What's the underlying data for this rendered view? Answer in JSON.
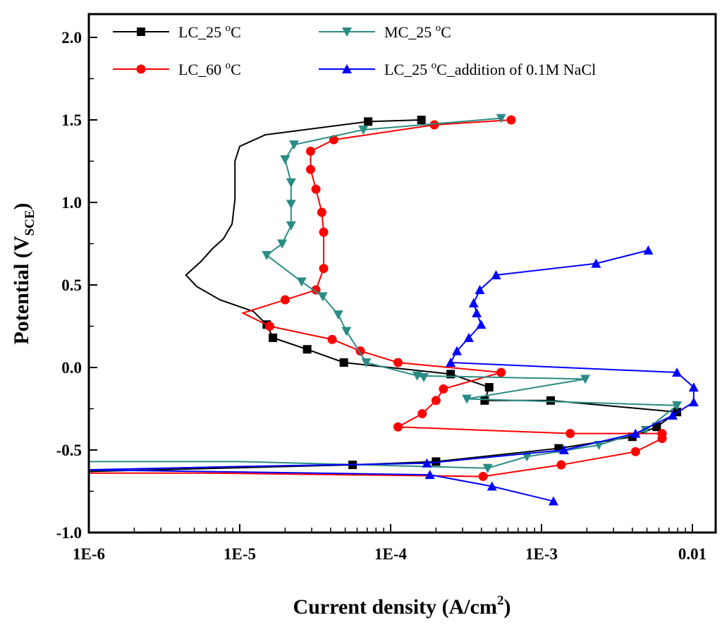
{
  "chart_data": {
    "type": "line",
    "title": "",
    "xlabel": {
      "pre": "Current density (A/cm",
      "sup": "2",
      "post": ")"
    },
    "ylabel": {
      "pre": "Potential (V",
      "sub": "SCE",
      "post": ")"
    },
    "xscale": "log",
    "xlim": [
      1e-06,
      0.015
    ],
    "ylim": [
      -1.0,
      2.0
    ],
    "xticks": [
      {
        "v": 1e-06,
        "label": "1E-6"
      },
      {
        "v": 1e-05,
        "label": "1E-5"
      },
      {
        "v": 0.0001,
        "label": "1E-4"
      },
      {
        "v": 0.001,
        "label": "1E-3"
      },
      {
        "v": 0.01,
        "label": "0.01"
      }
    ],
    "yticks": [
      {
        "v": -1.0,
        "label": "-1.0"
      },
      {
        "v": -0.5,
        "label": "-0.5"
      },
      {
        "v": 0.0,
        "label": "0.0"
      },
      {
        "v": 0.5,
        "label": "0.5"
      },
      {
        "v": 1.0,
        "label": "1.0"
      },
      {
        "v": 1.5,
        "label": "1.5"
      },
      {
        "v": 2.0,
        "label": "2.0"
      }
    ],
    "legend_placement": "top-left",
    "series": [
      {
        "name": {
          "pre": "LC_25 ",
          "sup": "o",
          "post": "C"
        },
        "color": "#000000",
        "marker": "square",
        "x": [
          1e-06,
          5.6e-05,
          0.0002,
          0.0013,
          0.004,
          0.0058,
          0.0079,
          0.00115,
          0.00042,
          0.00045,
          0.00025,
          4.9e-05,
          2.8e-05,
          1.66e-05,
          1.51e-05,
          1.23e-05,
          7.4e-06,
          5.2e-06,
          4.4e-06,
          5.5e-06,
          6.6e-06,
          7.8e-06,
          8.9e-06,
          9.3e-06,
          9.3e-06,
          9.3e-06,
          1e-05,
          1.48e-05,
          7.1e-05,
          0.00016
        ],
        "y": [
          -0.63,
          -0.59,
          -0.57,
          -0.49,
          -0.42,
          -0.36,
          -0.27,
          -0.2,
          -0.2,
          -0.12,
          -0.04,
          0.03,
          0.11,
          0.18,
          0.26,
          0.34,
          0.41,
          0.49,
          0.56,
          0.64,
          0.72,
          0.78,
          0.87,
          1.02,
          1.18,
          1.25,
          1.34,
          1.41,
          1.49,
          1.5
        ]
      },
      {
        "name": {
          "pre": "LC_60 ",
          "sup": "o",
          "post": "C"
        },
        "color": "#ff0000",
        "marker": "circle",
        "x": [
          1e-06,
          6.3e-06,
          0.00041,
          0.00135,
          0.0042,
          0.0063,
          0.0063,
          0.00155,
          0.000112,
          0.000162,
          0.0002,
          0.000224,
          0.00054,
          0.000112,
          6.3e-05,
          4.1e-05,
          1.58e-05,
          1.05e-05,
          2e-05,
          3.2e-05,
          3.6e-05,
          3.6e-05,
          3.5e-05,
          3.2e-05,
          2.95e-05,
          2.95e-05,
          4.2e-05,
          0.000195,
          0.00063
        ],
        "y": [
          -0.64,
          -0.64,
          -0.66,
          -0.59,
          -0.51,
          -0.43,
          -0.4,
          -0.4,
          -0.36,
          -0.28,
          -0.2,
          -0.13,
          -0.03,
          0.03,
          0.1,
          0.17,
          0.25,
          0.33,
          0.41,
          0.47,
          0.6,
          0.82,
          0.94,
          1.08,
          1.2,
          1.31,
          1.38,
          1.47,
          1.5
        ]
      },
      {
        "name": {
          "pre": "MC_25 ",
          "sup": "o",
          "post": "C"
        },
        "color": "#2a8c84",
        "marker": "triangle-down",
        "x": [
          1e-06,
          1e-05,
          0.00044,
          0.0008,
          0.0024,
          0.0049,
          0.0079,
          0.00032,
          0.00195,
          0.00015,
          0.000166,
          6.9e-05,
          5.1e-05,
          4.5e-05,
          3.55e-05,
          2.57e-05,
          1.51e-05,
          1.91e-05,
          2.19e-05,
          2.19e-05,
          2.19e-05,
          2e-05,
          2.29e-05,
          6.6e-05,
          0.00054
        ],
        "y": [
          -0.57,
          -0.57,
          -0.61,
          -0.54,
          -0.47,
          -0.38,
          -0.23,
          -0.19,
          -0.07,
          -0.05,
          -0.06,
          0.03,
          0.22,
          0.32,
          0.43,
          0.52,
          0.68,
          0.75,
          0.86,
          0.99,
          1.12,
          1.26,
          1.35,
          1.44,
          1.51
        ]
      },
      {
        "name": {
          "pre": "LC_25 ",
          "sup": "o",
          "post": "C_addition of 0.1M NaCl"
        },
        "color": "#0000ff",
        "marker": "triangle-up",
        "x": [
          0.0012,
          0.00047,
          0.000182,
          1e-06,
          1e-05,
          0.000174,
          0.00141,
          0.0042,
          0.0074,
          0.0102,
          0.0102,
          0.0079,
          0.00025,
          0.000275,
          0.00033,
          0.000398,
          0.000372,
          0.000355,
          0.00039,
          0.0005,
          0.0023,
          0.0051
        ],
        "y": [
          -0.81,
          -0.72,
          -0.65,
          -0.62,
          -0.6,
          -0.58,
          -0.5,
          -0.4,
          -0.29,
          -0.21,
          -0.12,
          -0.03,
          0.03,
          0.1,
          0.18,
          0.26,
          0.33,
          0.39,
          0.47,
          0.56,
          0.63,
          0.71
        ]
      }
    ]
  }
}
